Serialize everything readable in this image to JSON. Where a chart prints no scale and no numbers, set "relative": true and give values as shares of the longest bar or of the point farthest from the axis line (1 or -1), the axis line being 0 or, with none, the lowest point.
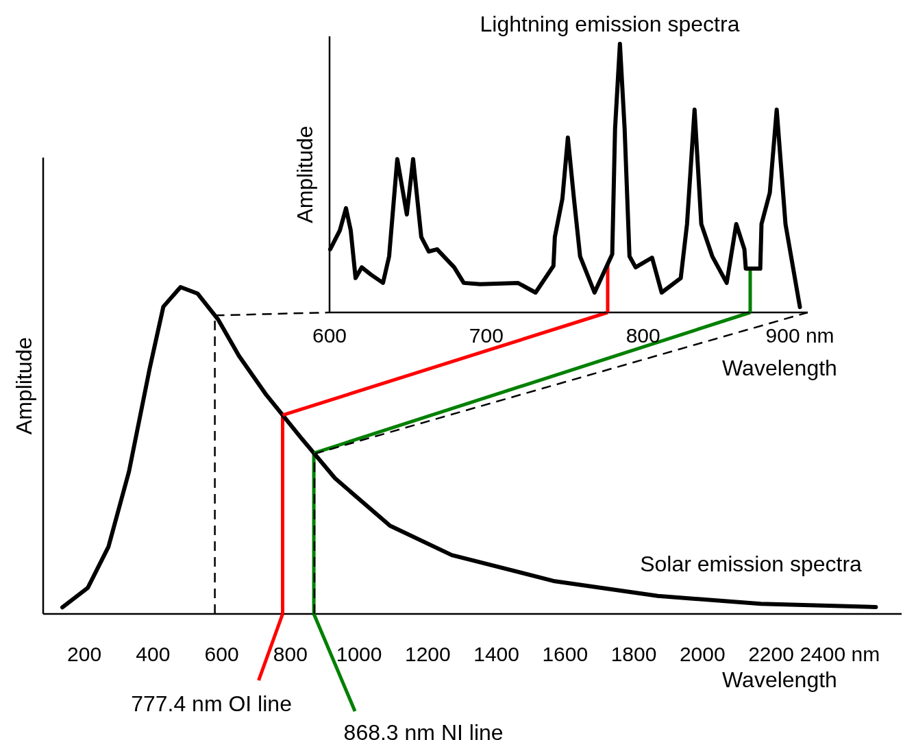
{
  "chart_data": [
    {
      "type": "line",
      "title": "Lightning emission spectra",
      "xlabel": "Wavelength",
      "ylabel": "Amplitude",
      "relative": true,
      "xlim": [
        600,
        905
      ],
      "xticks": [
        600,
        700,
        800,
        {
          "value": 900,
          "label": "900 nm"
        }
      ],
      "series": [
        {
          "color": "#000000",
          "x": [
            600.4,
            606.6,
            610.5,
            613.5,
            616.6,
            620.5,
            626.6,
            634.1,
            638.0,
            643.2,
            649.3,
            653.3,
            658.5,
            663.3,
            668.6,
            679.5,
            685.6,
            696.1,
            720.1,
            731.4,
            742.8,
            743.7,
            748.5,
            752.0,
            755.9,
            759.8,
            769.0,
            780.3,
            782.1,
            785.2,
            788.2,
            791.3,
            795.2,
            805.7,
            811.8,
            824.0,
            828.0,
            832.8,
            837.1,
            844.1,
            853.3,
            859.4,
            864.6,
            865.5,
            874.7,
            875.5,
            880.8,
            885.2,
            890.8,
            900.0
          ],
          "values": [
            0.235,
            0.306,
            0.388,
            0.306,
            0.128,
            0.168,
            0.14,
            0.11,
            0.209,
            0.571,
            0.365,
            0.571,
            0.281,
            0.227,
            0.235,
            0.168,
            0.11,
            0.105,
            0.11,
            0.074,
            0.173,
            0.281,
            0.423,
            0.651,
            0.423,
            0.209,
            0.074,
            0.217,
            0.684,
            1.0,
            0.684,
            0.209,
            0.168,
            0.204,
            0.074,
            0.128,
            0.329,
            0.755,
            0.329,
            0.209,
            0.11,
            0.329,
            0.235,
            0.163,
            0.163,
            0.329,
            0.446,
            0.755,
            0.329,
            0.02
          ]
        }
      ],
      "ref_lines": [
        {
          "axis": "x",
          "value": 777.4,
          "color": "#ff0000"
        },
        {
          "axis": "x",
          "value": 868.3,
          "color": "#008000"
        }
      ]
    },
    {
      "type": "line",
      "xlabel": "Wavelength",
      "ylabel": "Amplitude",
      "relative": true,
      "xlim": [
        80,
        2580
      ],
      "xticks": [
        200,
        400,
        600,
        800,
        1000,
        1200,
        1400,
        1600,
        1800,
        2000,
        2200,
        {
          "value": 2400,
          "label": "2400 nm"
        }
      ],
      "series": [
        {
          "name": "Solar emission spectra",
          "color": "#000000",
          "x": [
            136,
            210,
            270,
            330,
            390,
            430,
            480,
            530,
            590,
            650,
            730,
            830,
            930,
            1090,
            1270,
            1570,
            1870,
            2170,
            2505
          ],
          "values": [
            0.02,
            0.08,
            0.205,
            0.436,
            0.75,
            0.94,
            1.0,
            0.98,
            0.9,
            0.79,
            0.67,
            0.54,
            0.415,
            0.27,
            0.18,
            0.1,
            0.055,
            0.031,
            0.021
          ]
        }
      ],
      "ref_lines": [
        {
          "axis": "x",
          "value": 777.4,
          "label": "777.4 nm OI line",
          "color": "#ff0000"
        },
        {
          "axis": "x",
          "value": 868.3,
          "label": "868.3 nm NI line",
          "color": "#008000"
        },
        {
          "axis": "x",
          "value": 580,
          "color": "#000000",
          "line_style": "dashed"
        },
        {
          "axis": "x",
          "value": 870,
          "color": "#000000",
          "line_style": "dashed"
        }
      ]
    }
  ]
}
